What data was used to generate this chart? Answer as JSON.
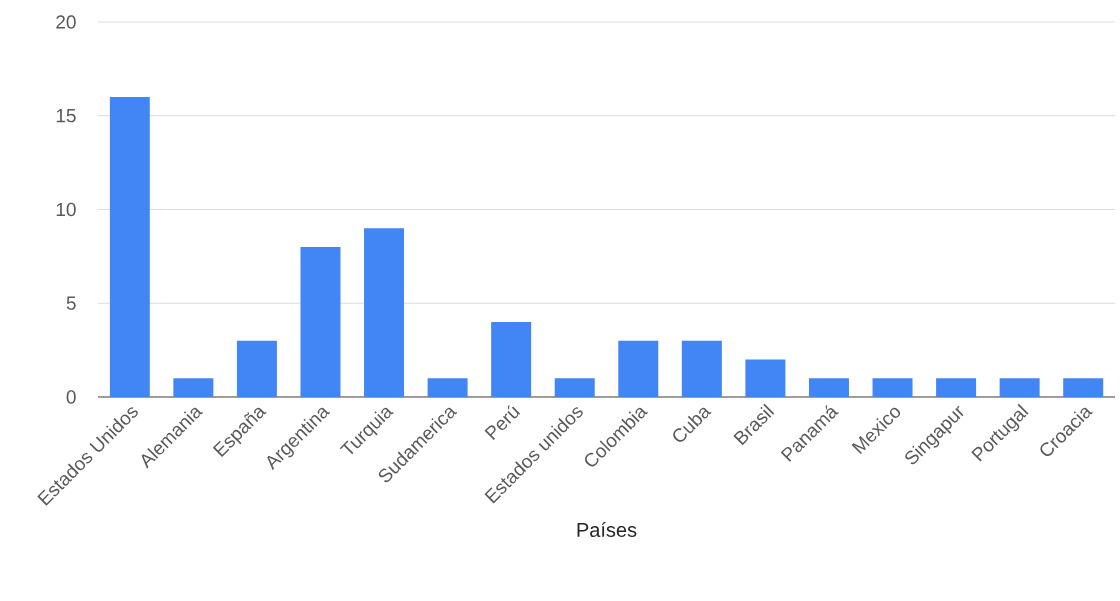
{
  "chart_data": {
    "type": "bar",
    "xlabel": "Países",
    "categories": [
      "Estados Unidos",
      "Alemania",
      "España",
      "Argentina",
      "Turquia",
      "Sudamerica",
      "Perú",
      "Estados unidos",
      "Colombia",
      "Cuba",
      "Brasil",
      "Panamá",
      "Mexico",
      "Singapur",
      "Portugal",
      "Croacia"
    ],
    "values": [
      16,
      1,
      3,
      8,
      9,
      1,
      4,
      1,
      3,
      3,
      2,
      1,
      1,
      1,
      1,
      1
    ],
    "color": "#4285f4",
    "ylim": [
      0,
      20
    ],
    "yticks": [
      0,
      5,
      10,
      15,
      20
    ],
    "grid": "y"
  }
}
